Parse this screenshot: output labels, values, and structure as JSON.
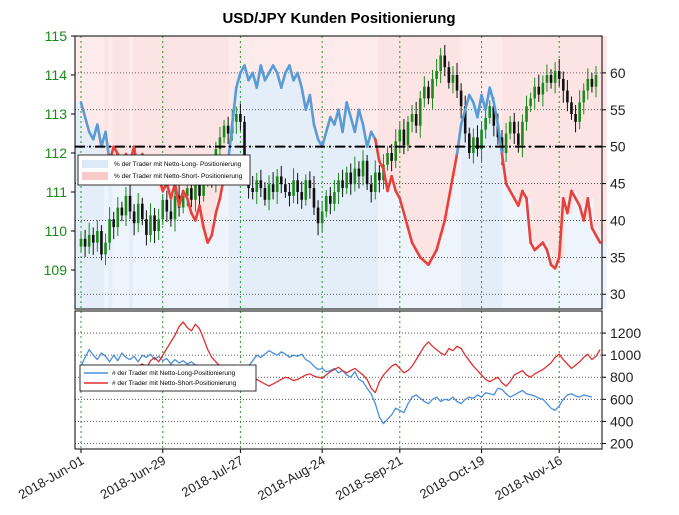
{
  "chart_data": [
    {
      "type": "line",
      "panel": "top",
      "title": "USD/JPY Kunden Positionierung",
      "background": "shaded by dominant positioning: red = net-short majority, blue = net-long majority",
      "left_axis": {
        "ticks": [
          "115",
          "114",
          "113",
          "112",
          "111",
          "110",
          "109"
        ],
        "ylim": [
          108,
          115
        ],
        "color": "#1a8a1a"
      },
      "right_axis": {
        "ticks": [
          "60",
          "55",
          "50",
          "45",
          "40",
          "35",
          "30"
        ],
        "ylim": [
          28,
          65
        ]
      },
      "reference_line": {
        "axis": "right",
        "value": 50,
        "style": "dash-dot black"
      },
      "legend": {
        "placement": "upper-left",
        "entries": [
          {
            "label": "% der Trader mit Netto-Long- Positionierung",
            "color": "#dce9f7"
          },
          {
            "label": "% der Trader mit Netto-Short- Positionierung",
            "color": "#f8caca"
          }
        ]
      },
      "price_close": [
        109.8,
        109.6,
        109.9,
        109.7,
        110.0,
        109.4,
        109.7,
        110.3,
        110.1,
        110.6,
        110.4,
        110.9,
        110.5,
        110.2,
        110.7,
        110.3,
        109.9,
        110.4,
        110.0,
        110.3,
        110.8,
        110.5,
        110.3,
        110.9,
        110.6,
        110.9,
        111.1,
        110.8,
        111.2,
        110.9,
        111.4,
        111.6,
        111.3,
        112.1,
        112.4,
        112.7,
        112.5,
        112.8,
        113.0,
        112.8,
        111.4,
        111.1,
        111.0,
        111.3,
        111.1,
        110.8,
        111.2,
        111.0,
        111.4,
        111.2,
        111.0,
        110.9,
        111.3,
        111.0,
        110.8,
        111.3,
        111.1,
        110.6,
        110.2,
        110.5,
        110.9,
        110.7,
        111.0,
        111.3,
        111.1,
        111.5,
        111.2,
        111.6,
        111.4,
        111.8,
        111.2,
        111.0,
        111.5,
        111.3,
        111.7,
        112.0,
        111.8,
        112.3,
        112.6,
        112.2,
        112.8,
        113.0,
        112.7,
        113.4,
        113.7,
        113.4,
        113.9,
        114.1,
        114.5,
        114.2,
        113.8,
        114.0,
        113.6,
        113.2,
        112.5,
        112.0,
        112.4,
        112.1,
        112.6,
        112.9,
        113.2,
        112.7,
        112.4,
        112.0,
        112.5,
        112.8,
        112.5,
        112.2,
        112.8,
        113.2,
        113.4,
        113.7,
        113.5,
        113.8,
        114.0,
        113.8,
        114.1,
        113.9,
        113.6,
        113.3,
        113.0,
        112.8,
        113.3,
        113.6,
        113.9,
        113.7,
        114.0
      ],
      "long_pct": [
        56,
        54,
        52,
        51,
        53,
        50,
        52,
        48,
        50,
        49,
        47,
        49,
        48,
        50,
        46,
        49,
        47,
        45,
        48,
        46,
        44,
        45,
        43,
        45,
        42,
        44,
        43,
        41,
        40,
        42,
        39,
        37,
        38,
        41,
        43,
        46,
        48,
        53,
        58,
        60,
        61,
        59,
        60,
        58,
        61,
        59,
        60,
        61,
        60,
        58,
        60,
        61,
        59,
        60,
        58,
        55,
        57,
        53,
        51,
        50,
        52,
        54,
        53,
        55,
        52,
        56,
        54,
        52,
        55,
        53,
        50,
        52,
        51,
        48,
        47,
        44,
        46,
        44,
        43,
        41,
        39,
        37,
        36,
        35,
        34.5,
        34,
        35,
        36,
        38,
        40,
        43,
        46,
        49,
        53,
        55,
        57,
        56,
        54,
        57,
        55,
        58,
        56,
        53,
        49,
        45,
        44,
        43,
        42,
        44,
        43,
        37,
        36,
        36.5,
        37,
        36,
        34,
        33.5,
        35,
        43,
        41,
        44,
        43,
        42,
        40,
        43,
        39,
        38,
        37
      ],
      "long_pct_note": "line is drawn blue where value >= 50 (net-long) and red where < 50"
    },
    {
      "type": "line",
      "panel": "bottom",
      "right_axis": {
        "ticks": [
          "1200",
          "1000",
          "800",
          "600",
          "400",
          "200"
        ],
        "ylim": [
          150,
          1400
        ]
      },
      "legend": {
        "placement": "left",
        "entries": [
          {
            "label": "# der Trader mit Netto-Long-Positionierung",
            "color": "#4a90d9"
          },
          {
            "label": "# der Trader mit Netto-Short-Positionierung",
            "color": "#e03030"
          }
        ]
      },
      "series": [
        {
          "name": "# der Trader mit Netto-Long-Positionierung",
          "color": "#4a90d9",
          "values": [
            900,
            980,
            1050,
            1000,
            960,
            1020,
            990,
            940,
            1000,
            950,
            1020,
            980,
            960,
            990,
            940,
            1000,
            980,
            1010,
            960,
            990,
            950,
            970,
            920,
            960,
            930,
            950,
            920,
            940,
            910,
            880,
            900,
            870,
            890,
            900,
            870,
            850,
            880,
            860,
            870,
            840,
            880,
            900,
            950,
            1000,
            980,
            1010,
            1040,
            1020,
            1000,
            1030,
            1010,
            980,
            1000,
            990,
            1010,
            960,
            940,
            900,
            870,
            880,
            850,
            860,
            880,
            840,
            860,
            820,
            800,
            850,
            780,
            760,
            700,
            650,
            560,
            440,
            380,
            420,
            460,
            520,
            500,
            480,
            560,
            620,
            640,
            610,
            580,
            560,
            600,
            620,
            580,
            600,
            590,
            620,
            580,
            560,
            600,
            620,
            610,
            640,
            620,
            660,
            650,
            640,
            700,
            690,
            650,
            620,
            640,
            660,
            680,
            650,
            640,
            630,
            610,
            600,
            560,
            520,
            500,
            540,
            600,
            640,
            650,
            630,
            620,
            640,
            630,
            620
          ]
        },
        {
          "name": "# der Trader mit Netto-Short-Positionierung",
          "color": "#e03030",
          "values": [
            780,
            820,
            760,
            800,
            850,
            790,
            820,
            780,
            840,
            800,
            860,
            820,
            880,
            850,
            900,
            920,
            880,
            950,
            980,
            940,
            1000,
            1060,
            1120,
            1180,
            1260,
            1300,
            1250,
            1220,
            1280,
            1240,
            1150,
            1050,
            980,
            940,
            900,
            880,
            870,
            860,
            850,
            860,
            840,
            820,
            800,
            780,
            760,
            740,
            720,
            740,
            760,
            780,
            800,
            790,
            770,
            780,
            800,
            820,
            830,
            810,
            800,
            790,
            820,
            850,
            870,
            890,
            860,
            840,
            860,
            880,
            850,
            820,
            780,
            700,
            660,
            760,
            820,
            860,
            900,
            920,
            880,
            840,
            860,
            900,
            960,
            1020,
            1080,
            1120,
            1080,
            1050,
            1020,
            1000,
            1060,
            1040,
            1080,
            1060,
            1000,
            950,
            900,
            860,
            820,
            780,
            760,
            780,
            800,
            750,
            720,
            760,
            820,
            840,
            860,
            820,
            800,
            830,
            850,
            870,
            900,
            930,
            980,
            1010,
            960,
            920,
            880,
            910,
            940,
            980,
            1010,
            960,
            990,
            1050
          ]
        }
      ]
    }
  ],
  "x_axis": {
    "labels": [
      "2018-Jun-01",
      "2018-Jun-29",
      "2018-Jul-27",
      "2018-Aug-24",
      "2018-Sep-21",
      "2018-Oct-19",
      "2018-Nov-16"
    ]
  }
}
